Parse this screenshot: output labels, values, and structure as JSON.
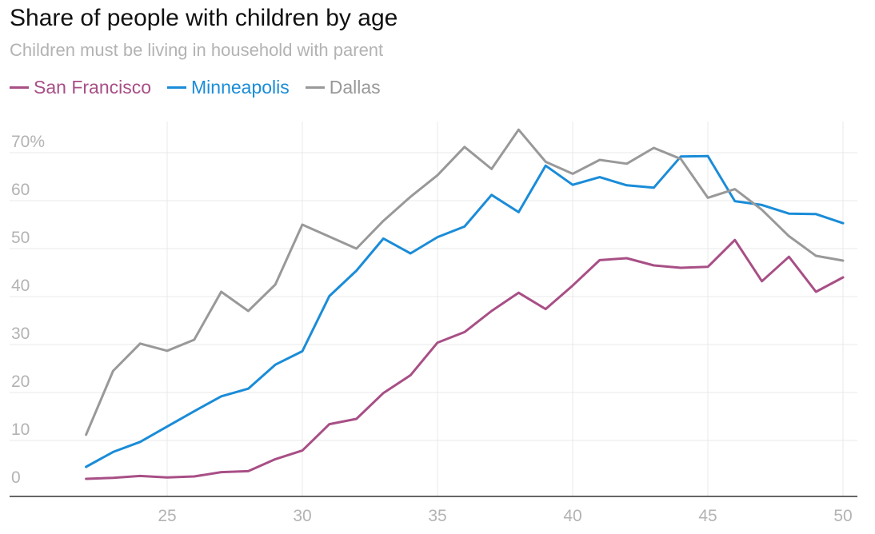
{
  "header": {
    "title": "Share of people with children by age",
    "subtitle": "Children must be living in household with parent"
  },
  "chart_data": {
    "type": "line",
    "title": "Share of people with children by age",
    "subtitle": "Children must be living in household with parent",
    "xlabel": "",
    "ylabel": "",
    "x": [
      22,
      23,
      24,
      25,
      26,
      27,
      28,
      29,
      30,
      31,
      32,
      33,
      34,
      35,
      36,
      37,
      38,
      39,
      40,
      41,
      42,
      43,
      44,
      45,
      46,
      47,
      48,
      49,
      50
    ],
    "xlim": [
      20,
      50
    ],
    "ylim": [
      0,
      75
    ],
    "x_ticks": [
      "25",
      "30",
      "35",
      "40",
      "45",
      "50"
    ],
    "y_ticks": [
      "0",
      "10",
      "20",
      "30",
      "40",
      "50",
      "60",
      "70%"
    ],
    "grid": true,
    "legend_position": "top-left",
    "series": [
      {
        "name": "San Francisco",
        "color": "#a84f86",
        "values": [
          2,
          2.2,
          2.6,
          2.3,
          2.5,
          3.4,
          3.6,
          6.1,
          7.9,
          13.4,
          14.5,
          19.9,
          23.6,
          30.4,
          32.6,
          37,
          40.8,
          37.4,
          42.3,
          47.6,
          48,
          46.5,
          46,
          46.2,
          51.8,
          43.2,
          48.3,
          41,
          44
        ]
      },
      {
        "name": "Minneapolis",
        "color": "#1a8cd8",
        "values": [
          4.5,
          7.6,
          9.7,
          12.9,
          16.1,
          19.2,
          20.8,
          25.8,
          28.6,
          40.1,
          45.4,
          52.1,
          49,
          52.4,
          54.6,
          61.2,
          57.6,
          67.3,
          63.3,
          64.9,
          63.2,
          62.7,
          69.2,
          69.3,
          59.9,
          59.1,
          57.3,
          57.2,
          55.3
        ]
      },
      {
        "name": "Dallas",
        "color": "#999999",
        "values": [
          11.2,
          24.5,
          30.2,
          28.7,
          31,
          41,
          37,
          42.5,
          55,
          52.5,
          50,
          55.8,
          60.8,
          65.3,
          71.2,
          66.6,
          74.8,
          68.1,
          65.6,
          68.5,
          67.7,
          71,
          68.7,
          60.6,
          62.4,
          58.1,
          52.6,
          48.5,
          47.5
        ]
      }
    ]
  }
}
